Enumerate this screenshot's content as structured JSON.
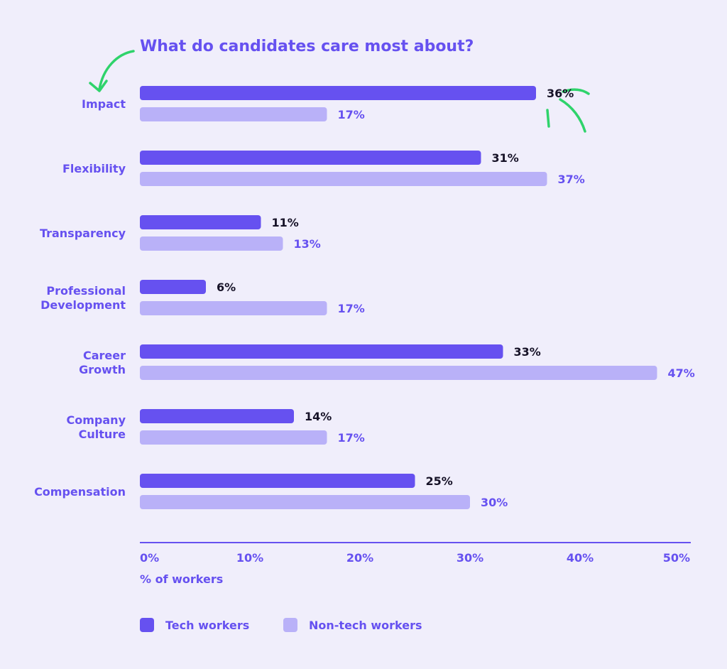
{
  "colors": {
    "background": "#f0eefb",
    "tech": "#6651f0",
    "non_tech": "#b9b1f8",
    "text_accent": "#6651f0",
    "text_dark": "#161227",
    "annotation": "#2fd36b"
  },
  "chart_data": {
    "type": "bar",
    "orientation": "horizontal",
    "title": "What do candidates care most about?",
    "xlabel": "% of workers",
    "xlim": [
      0,
      50
    ],
    "xticks": [
      "0%",
      "10%",
      "20%",
      "30%",
      "40%",
      "50%"
    ],
    "grid": false,
    "legend_position": "bottom",
    "categories": [
      [
        "Impact"
      ],
      [
        "Flexibility"
      ],
      [
        "Transparency"
      ],
      [
        "Professional",
        "Development"
      ],
      [
        "Career",
        "Growth"
      ],
      [
        "Company",
        "Culture"
      ],
      [
        "Compensation"
      ]
    ],
    "series": [
      {
        "name": "Tech workers",
        "values": [
          36,
          31,
          11,
          6,
          33,
          14,
          25
        ],
        "labels": [
          "36%",
          "31%",
          "11%",
          "6%",
          "33%",
          "14%",
          "25%"
        ]
      },
      {
        "name": "Non-tech workers",
        "values": [
          17,
          37,
          13,
          17,
          47,
          17,
          30
        ],
        "labels": [
          "17%",
          "37%",
          "13%",
          "17%",
          "47%",
          "17%",
          "30%"
        ]
      }
    ]
  }
}
